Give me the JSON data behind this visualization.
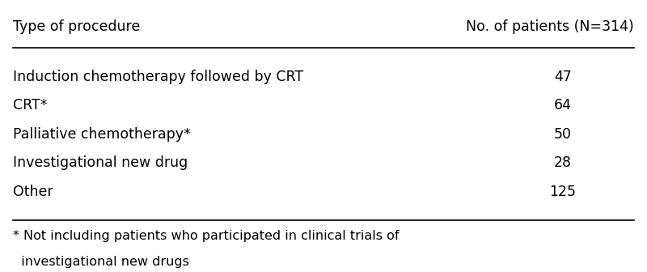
{
  "col1_header": "Type of procedure",
  "col2_header": "No. of patients (N=314)",
  "rows": [
    [
      "Induction chemotherapy followed by CRT",
      "47"
    ],
    [
      "CRT*",
      "64"
    ],
    [
      "Palliative chemotherapy*",
      "50"
    ],
    [
      "Investigational new drug",
      "28"
    ],
    [
      "Other",
      "125"
    ]
  ],
  "footnote_line1": "* Not including patients who participated in clinical trials of",
  "footnote_line2": "  investigational new drugs",
  "background_color": "#ffffff",
  "text_color": "#000000",
  "line_color": "#000000",
  "header_fontsize": 12.5,
  "body_fontsize": 12.5,
  "footnote_fontsize": 11.5
}
